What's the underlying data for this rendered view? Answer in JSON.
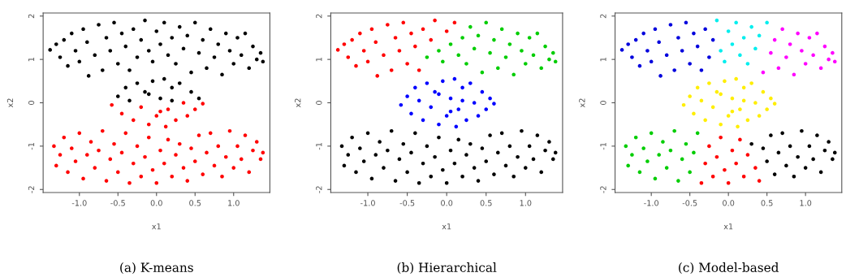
{
  "chart_data": [
    {
      "type": "scatter",
      "title": "(a) K-means",
      "xlabel": "x1",
      "ylabel": "x2",
      "marker": "circle",
      "xlim": [
        -1.47,
        1.47
      ],
      "ylim": [
        -2.07,
        2.07
      ],
      "xticks": [
        {
          "value": -1,
          "label": "-1.0"
        },
        {
          "value": -0.5,
          "label": "-0.5"
        },
        {
          "value": 0,
          "label": "0.0"
        },
        {
          "value": 0.5,
          "label": "0.5"
        },
        {
          "value": 1,
          "label": "1.0"
        }
      ],
      "yticks": [
        -2,
        -1,
        0,
        1,
        2
      ],
      "series": [
        {
          "color": "#000000",
          "x": [
            -1.38,
            -1.3,
            -1.25,
            -1.2,
            -1.15,
            -1.1,
            -1.05,
            -1.0,
            -0.95,
            -0.9,
            -0.88,
            -0.8,
            -0.75,
            -0.7,
            -0.65,
            -0.6,
            -0.55,
            -0.5,
            -0.45,
            -0.4,
            -0.35,
            -0.3,
            -0.25,
            -0.2,
            -0.15,
            -0.1,
            -0.05,
            0.0,
            0.05,
            0.1,
            0.15,
            0.2,
            0.25,
            0.3,
            0.35,
            0.4,
            0.45,
            0.5,
            0.55,
            0.6,
            0.65,
            0.7,
            0.75,
            0.8,
            0.85,
            0.9,
            0.95,
            1.0,
            1.05,
            1.1,
            1.15,
            1.2,
            1.25,
            1.3,
            1.35,
            1.38,
            -0.5,
            -0.4,
            -0.35,
            -0.25,
            -0.15,
            -0.05,
            0.05,
            0.1,
            0.2,
            0.3,
            0.45,
            0.55,
            -0.1,
            0.2
          ],
          "values": [
            1.22,
            1.35,
            1.05,
            1.45,
            0.85,
            1.6,
            1.2,
            0.95,
            1.7,
            1.4,
            0.62,
            1.1,
            1.8,
            0.75,
            1.5,
            1.2,
            1.85,
            0.9,
            1.6,
            1.3,
            0.75,
            1.7,
            1.05,
            1.45,
            1.9,
            1.2,
            0.95,
            1.65,
            1.35,
            1.85,
            1.1,
            1.5,
            0.9,
            1.75,
            1.25,
            1.55,
            0.7,
            1.85,
            1.15,
            1.45,
            0.8,
            1.7,
            1.05,
            1.35,
            0.65,
            1.6,
            1.2,
            0.9,
            1.5,
            1.1,
            1.6,
            0.8,
            1.3,
            1.0,
            1.15,
            0.95,
            0.15,
            0.35,
            0.05,
            0.45,
            0.25,
            0.5,
            0.1,
            0.55,
            0.35,
            0.45,
            0.25,
            0.1,
            0.2,
            0.05
          ]
        },
        {
          "color": "#ff0000",
          "x": [
            -0.58,
            -0.45,
            -0.3,
            -0.2,
            -0.1,
            0.0,
            0.12,
            0.15,
            0.25,
            0.35,
            0.4,
            0.5,
            0.6,
            0.05,
            -1.33,
            -1.3,
            -1.25,
            -1.2,
            -1.15,
            -1.1,
            -1.05,
            -1.0,
            -0.95,
            -0.9,
            -0.85,
            -0.8,
            -0.75,
            -0.7,
            -0.65,
            -0.6,
            -0.55,
            -0.5,
            -0.45,
            -0.4,
            -0.35,
            -0.3,
            -0.25,
            -0.2,
            -0.15,
            -0.1,
            -0.05,
            0.0,
            0.05,
            0.1,
            0.15,
            0.2,
            0.25,
            0.3,
            0.35,
            0.4,
            0.45,
            0.5,
            0.55,
            0.6,
            0.65,
            0.7,
            0.75,
            0.8,
            0.85,
            0.9,
            0.95,
            1.0,
            1.05,
            1.1,
            1.15,
            1.2,
            1.25,
            1.3,
            1.35,
            1.38
          ],
          "values": [
            -0.05,
            -0.25,
            -0.4,
            -0.1,
            -0.5,
            -0.3,
            -0.55,
            -0.15,
            -0.4,
            0.0,
            -0.3,
            -0.15,
            -0.02,
            -0.2,
            -1.0,
            -1.45,
            -1.2,
            -0.8,
            -1.6,
            -1.05,
            -1.35,
            -0.7,
            -1.75,
            -1.2,
            -0.9,
            -1.5,
            -1.1,
            -0.65,
            -1.8,
            -1.3,
            -0.95,
            -1.6,
            -1.15,
            -0.7,
            -1.85,
            -1.4,
            -1.0,
            -1.7,
            -1.25,
            -0.8,
            -1.55,
            -1.85,
            -1.1,
            -1.4,
            -0.85,
            -1.7,
            -1.2,
            -0.95,
            -1.5,
            -1.8,
            -1.05,
            -1.35,
            -0.75,
            -1.65,
            -1.15,
            -0.7,
            -1.45,
            -1.0,
            -1.7,
            -1.25,
            -0.65,
            -1.5,
            -1.0,
            -1.3,
            -0.75,
            -1.6,
            -1.1,
            -0.9,
            -1.3,
            -1.15
          ]
        }
      ]
    },
    {
      "type": "scatter",
      "title": "(b) Hierarchical",
      "xlabel": "x1",
      "ylabel": "x2",
      "marker": "circle",
      "xlim": [
        -1.47,
        1.47
      ],
      "ylim": [
        -2.07,
        2.07
      ],
      "xticks": [
        {
          "value": -1,
          "label": "-1.0"
        },
        {
          "value": -0.5,
          "label": "-0.5"
        },
        {
          "value": 0,
          "label": "0.0"
        },
        {
          "value": 0.5,
          "label": "0.5"
        },
        {
          "value": 1,
          "label": "1.0"
        }
      ],
      "yticks": [
        -2,
        -1,
        0,
        1,
        2
      ],
      "series": [
        {
          "color": "#ff0000",
          "x": [
            -1.38,
            -1.3,
            -1.25,
            -1.2,
            -1.15,
            -1.1,
            -1.05,
            -1.0,
            -0.95,
            -0.9,
            -0.88,
            -0.8,
            -0.75,
            -0.7,
            -0.65,
            -0.6,
            -0.55,
            -0.5,
            -0.45,
            -0.4,
            -0.35,
            -0.3,
            -0.2,
            -0.15,
            0.0,
            0.1
          ],
          "values": [
            1.22,
            1.35,
            1.05,
            1.45,
            0.85,
            1.6,
            1.2,
            0.95,
            1.7,
            1.4,
            0.62,
            1.1,
            1.8,
            0.75,
            1.5,
            1.2,
            1.85,
            0.9,
            1.6,
            1.3,
            0.75,
            1.7,
            1.45,
            1.9,
            1.65,
            1.85
          ]
        },
        {
          "color": "#00cd00",
          "x": [
            -0.25,
            -0.1,
            -0.05,
            0.05,
            0.15,
            0.2,
            0.25,
            0.3,
            0.35,
            0.4,
            0.45,
            0.5,
            0.55,
            0.6,
            0.65,
            0.7,
            0.75,
            0.8,
            0.85,
            0.9,
            0.95,
            1.0,
            1.05,
            1.1,
            1.15,
            1.2,
            1.25,
            1.3,
            1.35,
            1.38
          ],
          "values": [
            1.05,
            1.2,
            0.95,
            1.35,
            1.1,
            1.5,
            0.9,
            1.75,
            1.25,
            1.55,
            0.7,
            1.85,
            1.15,
            1.45,
            0.8,
            1.7,
            1.05,
            1.35,
            0.65,
            1.6,
            1.2,
            0.9,
            1.5,
            1.1,
            1.6,
            0.8,
            1.3,
            1.0,
            1.15,
            0.95
          ]
        },
        {
          "color": "#0000ff",
          "x": [
            -0.58,
            -0.5,
            -0.45,
            -0.4,
            -0.35,
            -0.3,
            -0.25,
            -0.2,
            -0.15,
            -0.1,
            -0.05,
            0.0,
            0.05,
            0.1,
            0.12,
            0.15,
            0.2,
            0.25,
            0.3,
            0.35,
            0.4,
            0.45,
            0.5,
            0.55,
            0.6,
            -0.1,
            0.05,
            0.2
          ],
          "values": [
            -0.05,
            0.15,
            -0.25,
            0.35,
            0.05,
            -0.4,
            0.45,
            -0.1,
            0.25,
            -0.5,
            0.5,
            -0.3,
            0.1,
            0.55,
            -0.55,
            -0.15,
            0.35,
            -0.4,
            0.45,
            0.0,
            -0.3,
            0.25,
            -0.15,
            0.1,
            -0.02,
            0.2,
            -0.2,
            0.05
          ]
        },
        {
          "color": "#000000",
          "x": [
            -1.33,
            -1.3,
            -1.25,
            -1.2,
            -1.15,
            -1.1,
            -1.05,
            -1.0,
            -0.95,
            -0.9,
            -0.85,
            -0.8,
            -0.75,
            -0.7,
            -0.65,
            -0.6,
            -0.55,
            -0.5,
            -0.45,
            -0.4,
            -0.35,
            -0.3,
            -0.25,
            -0.2,
            -0.15,
            -0.1,
            -0.05,
            0.0,
            0.05,
            0.1,
            0.15,
            0.2,
            0.25,
            0.3,
            0.35,
            0.4,
            0.45,
            0.5,
            0.55,
            0.6,
            0.65,
            0.7,
            0.75,
            0.8,
            0.85,
            0.9,
            0.95,
            1.0,
            1.05,
            1.1,
            1.15,
            1.2,
            1.25,
            1.3,
            1.35,
            1.38
          ],
          "values": [
            -1.0,
            -1.45,
            -1.2,
            -0.8,
            -1.6,
            -1.05,
            -1.35,
            -0.7,
            -1.75,
            -1.2,
            -0.9,
            -1.5,
            -1.1,
            -0.65,
            -1.8,
            -1.3,
            -0.95,
            -1.6,
            -1.15,
            -0.7,
            -1.85,
            -1.4,
            -1.0,
            -1.7,
            -1.25,
            -0.8,
            -1.55,
            -1.85,
            -1.1,
            -1.4,
            -0.85,
            -1.7,
            -1.2,
            -0.95,
            -1.5,
            -1.8,
            -1.05,
            -1.35,
            -0.75,
            -1.65,
            -1.15,
            -0.7,
            -1.45,
            -1.0,
            -1.7,
            -1.25,
            -0.65,
            -1.5,
            -1.0,
            -1.3,
            -0.75,
            -1.6,
            -1.1,
            -0.9,
            -1.3,
            -1.15
          ]
        }
      ]
    },
    {
      "type": "scatter",
      "title": "(c) Model-based",
      "xlabel": "x1",
      "ylabel": "x2",
      "marker": "circle",
      "xlim": [
        -1.47,
        1.47
      ],
      "ylim": [
        -2.07,
        2.07
      ],
      "xticks": [
        {
          "value": -1,
          "label": "-1.0"
        },
        {
          "value": -0.5,
          "label": "-0.5"
        },
        {
          "value": 0,
          "label": "0.0"
        },
        {
          "value": 0.5,
          "label": "0.5"
        },
        {
          "value": 1,
          "label": "1.0"
        }
      ],
      "yticks": [
        -2,
        -1,
        0,
        1,
        2
      ],
      "series": [
        {
          "color": "#0000dd",
          "x": [
            -1.38,
            -1.3,
            -1.25,
            -1.2,
            -1.15,
            -1.1,
            -1.05,
            -1.0,
            -0.95,
            -0.9,
            -0.88,
            -0.8,
            -0.75,
            -0.7,
            -0.65,
            -0.6,
            -0.55,
            -0.5,
            -0.45,
            -0.4,
            -0.35,
            -0.3,
            -0.25,
            -0.2
          ],
          "values": [
            1.22,
            1.35,
            1.05,
            1.45,
            0.85,
            1.6,
            1.2,
            0.95,
            1.7,
            1.4,
            0.62,
            1.1,
            1.8,
            0.75,
            1.5,
            1.2,
            1.85,
            0.9,
            1.6,
            1.3,
            0.75,
            1.7,
            1.05,
            1.45
          ]
        },
        {
          "color": "#00eeee",
          "x": [
            -0.15,
            -0.1,
            -0.05,
            0.0,
            0.05,
            0.1,
            0.15,
            0.2,
            0.25,
            0.3,
            0.35,
            0.4,
            0.5
          ],
          "values": [
            1.9,
            1.2,
            0.95,
            1.65,
            1.35,
            1.85,
            1.1,
            1.5,
            0.9,
            1.75,
            1.25,
            1.55,
            1.85
          ]
        },
        {
          "color": "#ff00ff",
          "x": [
            0.45,
            0.55,
            0.6,
            0.65,
            0.7,
            0.75,
            0.8,
            0.85,
            0.9,
            0.95,
            1.0,
            1.05,
            1.1,
            1.15,
            1.2,
            1.25,
            1.3,
            1.35,
            1.38
          ],
          "values": [
            0.7,
            1.15,
            1.45,
            0.8,
            1.7,
            1.05,
            1.35,
            0.65,
            1.6,
            1.2,
            0.9,
            1.5,
            1.1,
            1.6,
            0.8,
            1.3,
            1.0,
            1.15,
            0.95
          ]
        },
        {
          "color": "#ffee00",
          "x": [
            -0.58,
            -0.5,
            -0.45,
            -0.4,
            -0.35,
            -0.3,
            -0.25,
            -0.2,
            -0.15,
            -0.1,
            -0.05,
            0.0,
            0.05,
            0.1,
            0.12,
            0.15,
            0.2,
            0.25,
            0.3,
            0.35,
            0.4,
            0.45,
            0.5,
            0.55,
            0.6,
            -0.1,
            0.05,
            0.2
          ],
          "values": [
            -0.05,
            0.15,
            -0.25,
            0.35,
            0.05,
            -0.4,
            0.45,
            -0.1,
            0.25,
            -0.5,
            0.5,
            -0.3,
            0.1,
            0.55,
            -0.55,
            -0.15,
            0.35,
            -0.4,
            0.45,
            0.0,
            -0.3,
            0.25,
            -0.15,
            0.1,
            -0.02,
            0.2,
            -0.2,
            0.05
          ]
        },
        {
          "color": "#00cd00",
          "x": [
            -1.33,
            -1.3,
            -1.25,
            -1.2,
            -1.15,
            -1.1,
            -1.05,
            -1.0,
            -0.95,
            -0.9,
            -0.85,
            -0.8,
            -0.75,
            -0.7,
            -0.65,
            -0.6,
            -0.55,
            -0.5,
            -0.45,
            -0.4
          ],
          "values": [
            -1.0,
            -1.45,
            -1.2,
            -0.8,
            -1.6,
            -1.05,
            -1.35,
            -0.7,
            -1.75,
            -1.2,
            -0.9,
            -1.5,
            -1.1,
            -0.65,
            -1.8,
            -1.3,
            -0.95,
            -1.6,
            -1.15,
            -0.7
          ]
        },
        {
          "color": "#ff0000",
          "x": [
            -0.35,
            -0.3,
            -0.25,
            -0.2,
            -0.15,
            -0.1,
            -0.05,
            0.0,
            0.05,
            0.1,
            0.15,
            0.2,
            0.25,
            0.35,
            0.4
          ],
          "values": [
            -1.85,
            -1.4,
            -1.0,
            -1.7,
            -1.25,
            -0.8,
            -1.55,
            -1.85,
            -1.1,
            -1.4,
            -0.85,
            -1.7,
            -1.2,
            -1.5,
            -1.8
          ]
        },
        {
          "color": "#000000",
          "x": [
            0.3,
            0.45,
            0.5,
            0.55,
            0.6,
            0.65,
            0.7,
            0.75,
            0.8,
            0.85,
            0.9,
            0.95,
            1.0,
            1.05,
            1.1,
            1.15,
            1.2,
            1.25,
            1.3,
            1.35,
            1.38
          ],
          "values": [
            -0.95,
            -1.05,
            -1.35,
            -0.75,
            -1.65,
            -1.15,
            -0.7,
            -1.45,
            -1.0,
            -1.7,
            -1.25,
            -0.65,
            -1.5,
            -1.0,
            -1.3,
            -0.75,
            -1.6,
            -1.1,
            -0.9,
            -1.3,
            -1.15
          ]
        }
      ]
    }
  ]
}
